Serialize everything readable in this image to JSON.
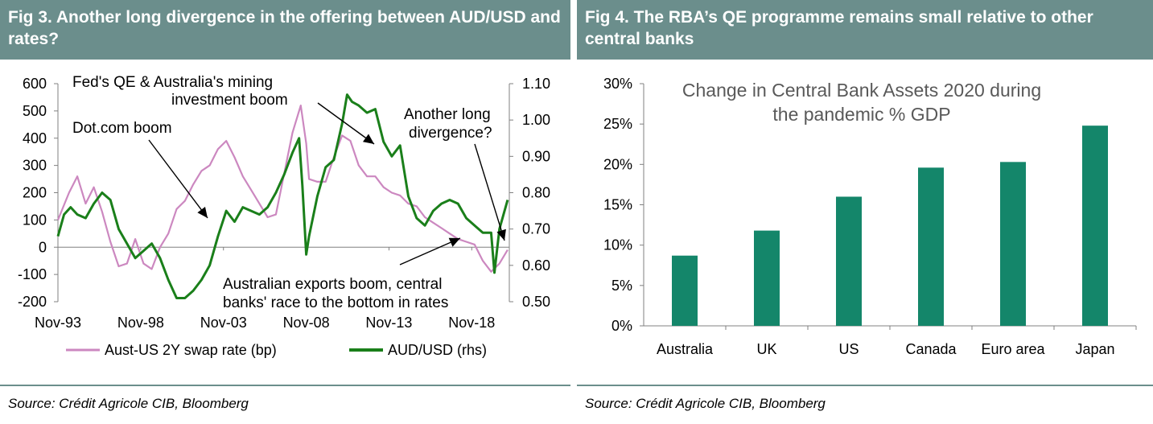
{
  "fig3": {
    "title": "Fig 3. Another long divergence in the offering between AUD/USD and rates?",
    "source": "Source: Crédit Agricole CIB, Bloomberg"
  },
  "fig4": {
    "title": "Fig 4. The RBA’s QE programme remains small relative to other central banks",
    "source": "Source: Crédit Agricole CIB, Bloomberg"
  },
  "colors": {
    "header": "#6b8e8c",
    "swap": "#cc88c0",
    "aud": "#1a7f1a",
    "bar": "#14866a"
  },
  "chart_data": [
    {
      "type": "line",
      "title": "Fig 3. Another long divergence in the offering between AUD/USD and rates?",
      "x_tick_labels": [
        "Nov-93",
        "Nov-98",
        "Nov-03",
        "Nov-08",
        "Nov-13",
        "Nov-18"
      ],
      "x_tick_years": [
        1993.83,
        1998.83,
        2003.83,
        2008.83,
        2013.83,
        2018.83
      ],
      "xlim": [
        1993.83,
        2021.1
      ],
      "y_left": {
        "range": [
          -200,
          600
        ],
        "ticks": [
          "-200",
          "-100",
          "0",
          "100",
          "200",
          "300",
          "400",
          "500",
          "600"
        ]
      },
      "y_right": {
        "range": [
          0.5,
          1.1
        ],
        "ticks": [
          "0.50",
          "0.60",
          "0.70",
          "0.80",
          "0.90",
          "1.00",
          "1.10"
        ]
      },
      "series": [
        {
          "name": "Aust-US 2Y swap rate (bp)",
          "axis": "left",
          "x": [
            1993.83,
            1994.5,
            1995.0,
            1995.5,
            1996.0,
            1996.5,
            1997.0,
            1997.5,
            1998.0,
            1998.5,
            1999.0,
            1999.5,
            2000.0,
            2000.5,
            2001.0,
            2001.5,
            2002.0,
            2002.5,
            2003.0,
            2003.5,
            2004.0,
            2004.5,
            2005.0,
            2005.5,
            2006.0,
            2006.5,
            2007.0,
            2007.5,
            2008.0,
            2008.5,
            2008.83,
            2009.0,
            2009.5,
            2010.0,
            2010.5,
            2011.0,
            2011.5,
            2012.0,
            2012.5,
            2013.0,
            2013.5,
            2014.0,
            2014.5,
            2015.0,
            2015.5,
            2016.0,
            2016.5,
            2017.0,
            2017.5,
            2018.0,
            2018.5,
            2019.0,
            2019.5,
            2020.0,
            2020.5,
            2021.0
          ],
          "y": [
            100,
            200,
            260,
            160,
            220,
            130,
            20,
            -70,
            -60,
            30,
            -60,
            -80,
            0,
            50,
            140,
            170,
            230,
            280,
            300,
            360,
            390,
            330,
            260,
            210,
            160,
            110,
            120,
            270,
            420,
            520,
            380,
            250,
            240,
            240,
            330,
            410,
            390,
            300,
            260,
            260,
            220,
            200,
            190,
            160,
            150,
            110,
            90,
            70,
            50,
            30,
            20,
            10,
            -50,
            -90,
            -60,
            -10
          ]
        },
        {
          "name": "AUD/USD (rhs)",
          "axis": "right",
          "x": [
            1993.83,
            1994.2,
            1994.6,
            1995.0,
            1995.5,
            1996.0,
            1996.5,
            1997.0,
            1997.5,
            1998.0,
            1998.5,
            1999.0,
            1999.5,
            2000.0,
            2000.5,
            2001.0,
            2001.5,
            2002.0,
            2002.5,
            2003.0,
            2003.5,
            2004.0,
            2004.5,
            2005.0,
            2005.5,
            2006.0,
            2006.5,
            2007.0,
            2007.5,
            2008.0,
            2008.4,
            2008.6,
            2008.83,
            2009.0,
            2009.5,
            2010.0,
            2010.5,
            2011.0,
            2011.3,
            2011.6,
            2012.0,
            2012.5,
            2013.0,
            2013.5,
            2014.0,
            2014.5,
            2015.0,
            2015.5,
            2016.0,
            2016.5,
            2017.0,
            2017.5,
            2018.0,
            2018.5,
            2019.0,
            2019.5,
            2020.0,
            2020.2,
            2020.5,
            2021.0
          ],
          "y": [
            0.68,
            0.74,
            0.76,
            0.74,
            0.73,
            0.77,
            0.8,
            0.78,
            0.7,
            0.66,
            0.62,
            0.64,
            0.66,
            0.62,
            0.56,
            0.51,
            0.51,
            0.53,
            0.56,
            0.6,
            0.68,
            0.75,
            0.72,
            0.76,
            0.75,
            0.74,
            0.76,
            0.8,
            0.85,
            0.91,
            0.95,
            0.82,
            0.63,
            0.68,
            0.79,
            0.87,
            0.89,
            0.99,
            1.07,
            1.05,
            1.04,
            1.02,
            1.03,
            0.94,
            0.9,
            0.93,
            0.79,
            0.73,
            0.71,
            0.75,
            0.77,
            0.78,
            0.77,
            0.73,
            0.71,
            0.69,
            0.69,
            0.58,
            0.7,
            0.78
          ]
        }
      ],
      "annotations": [
        "Fed's QE & Australia's mining",
        "investment boom",
        "Dot.com boom",
        "Another long",
        "divergence?",
        "Australian exports boom, central",
        "banks' race to the bottom in  rates"
      ]
    },
    {
      "type": "bar",
      "title": "Change in Central Bank Assets 2020 during the pandemic % GDP",
      "title_lines": [
        "Change in Central Bank Assets 2020 during",
        "the pandemic % GDP"
      ],
      "categories": [
        "Australia",
        "UK",
        "US",
        "Canada",
        "Euro area",
        "Japan"
      ],
      "values": [
        8.7,
        11.8,
        16.0,
        19.6,
        20.3,
        24.8
      ],
      "ylim": [
        0,
        30
      ],
      "y_ticks": [
        "0%",
        "5%",
        "10%",
        "15%",
        "20%",
        "25%",
        "30%"
      ],
      "unit": "%"
    }
  ]
}
